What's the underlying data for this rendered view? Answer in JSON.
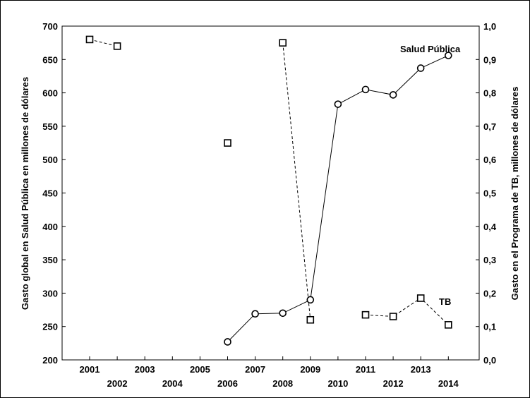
{
  "chart_data": {
    "type": "line",
    "xlabel": "",
    "ylabel_left": "Gasto global en Salud Pública en millones de dólares",
    "ylabel_right": "Gasto en el Programa de TB, millones de dólares",
    "x_ticks_upper": [
      "2001",
      "2003",
      "2005",
      "2007",
      "2009",
      "2011",
      "2013"
    ],
    "x_ticks_lower": [
      "2002",
      "2004",
      "2006",
      "2008",
      "2010",
      "2012",
      "2014"
    ],
    "ylim_left": [
      200,
      700
    ],
    "yticks_left": [
      "200",
      "250",
      "300",
      "350",
      "400",
      "450",
      "500",
      "550",
      "600",
      "650",
      "700"
    ],
    "ylim_right": [
      0.0,
      1.0
    ],
    "yticks_right": [
      "0,0",
      "0,1",
      "0,2",
      "0,3",
      "0,4",
      "0,5",
      "0,6",
      "0,7",
      "0,8",
      "0,9",
      "1,0"
    ],
    "grid": false,
    "series": [
      {
        "name": "Salud Pública",
        "axis": "left",
        "marker": "circle",
        "line": "solid",
        "points": [
          {
            "x": 2006,
            "y": 227
          },
          {
            "x": 2007,
            "y": 269
          },
          {
            "x": 2008,
            "y": 270
          },
          {
            "x": 2009,
            "y": 290
          },
          {
            "x": 2010,
            "y": 583
          },
          {
            "x": 2011,
            "y": 605
          },
          {
            "x": 2012,
            "y": 597
          },
          {
            "x": 2013,
            "y": 637
          },
          {
            "x": 2014,
            "y": 656
          }
        ],
        "segments": [
          [
            0,
            1,
            2,
            3,
            4,
            5,
            6,
            7,
            8
          ]
        ]
      },
      {
        "name": "TB",
        "axis": "right",
        "marker": "square",
        "line": "dashed",
        "points": [
          {
            "x": 2001,
            "y": 0.96
          },
          {
            "x": 2002,
            "y": 0.94
          },
          {
            "x": 2006,
            "y": 0.65
          },
          {
            "x": 2008,
            "y": 0.95
          },
          {
            "x": 2009,
            "y": 0.12
          },
          {
            "x": 2011,
            "y": 0.135
          },
          {
            "x": 2012,
            "y": 0.13
          },
          {
            "x": 2013,
            "y": 0.185
          },
          {
            "x": 2014,
            "y": 0.105
          }
        ],
        "segments": [
          [
            0,
            1
          ],
          [
            3,
            4
          ],
          [
            5,
            6,
            7,
            8
          ]
        ]
      }
    ]
  }
}
